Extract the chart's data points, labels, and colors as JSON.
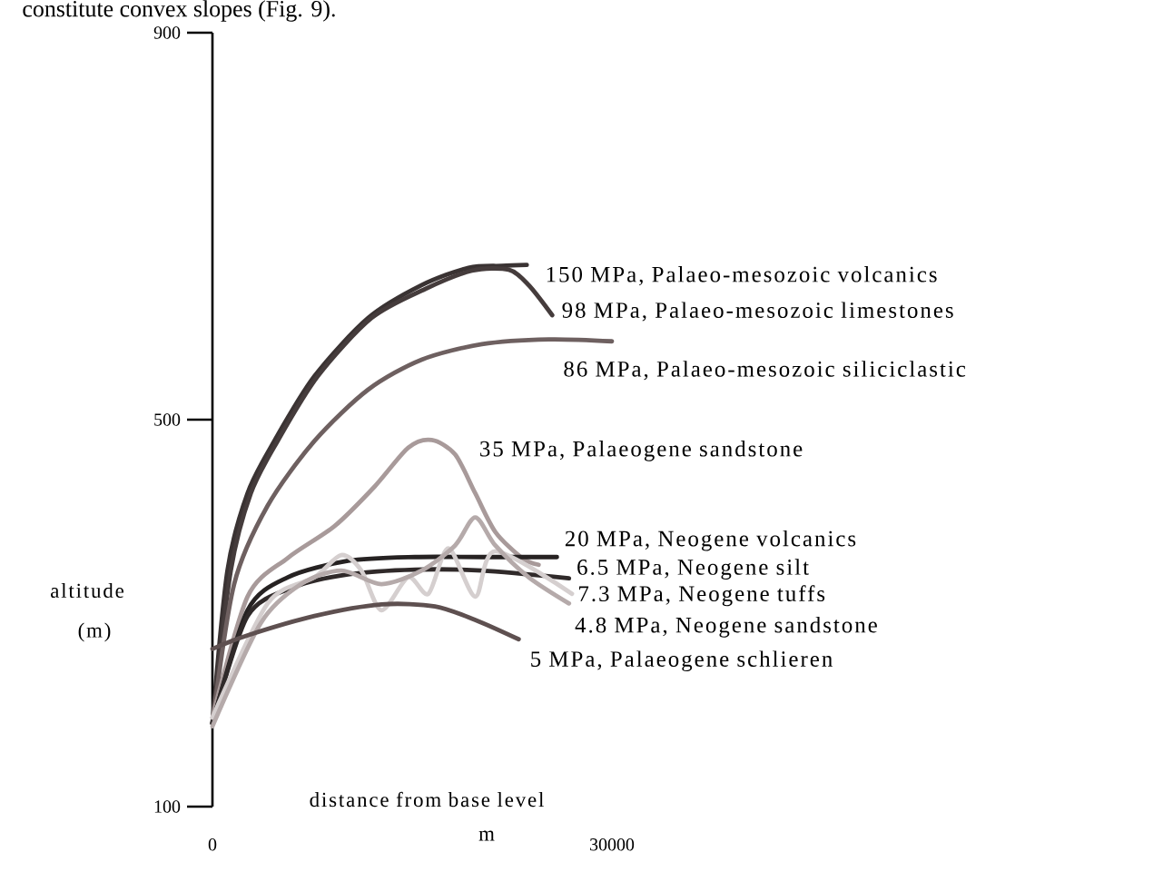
{
  "chart_data": {
    "type": "line",
    "xlabel": "distance from base level",
    "ylabel": "altitude",
    "xlim": [
      0,
      30000
    ],
    "ylim": [
      100,
      900
    ],
    "xticks": [
      0,
      30000
    ],
    "yticks": [
      100,
      500,
      900
    ],
    "grid": false,
    "annotations": [
      "constitute convex slopes (Fig. 9).",
      "m",
      "(m)"
    ],
    "series": [
      {
        "name": "150 MPa, Palaeo-mesozoic volcanics",
        "color": "#3a3333",
        "x": [
          0,
          1126,
          2635,
          4647,
          7664,
          11687,
          15710,
          19231,
          21745,
          23606
        ],
        "values": [
          186,
          344,
          424,
          478,
          545,
          605,
          639,
          657,
          659,
          660
        ]
      },
      {
        "name": "98 MPa, Palaeo-mesozoic limestones",
        "color": "#453c3c",
        "x": [
          0,
          1378,
          2886,
          4898,
          7915,
          11938,
          15962,
          19482,
          22248,
          23757,
          25517
        ],
        "values": [
          186,
          344,
          424,
          478,
          545,
          605,
          635,
          654,
          655,
          639,
          608
        ]
      },
      {
        "name": "86 MPa, Palaeo-mesozoic siliciclastic",
        "color": "#6e6060",
        "x": [
          0,
          1629,
          4143,
          7664,
          11687,
          15710,
          20236,
          25265,
          30000
        ],
        "values": [
          186,
          330,
          411,
          478,
          531,
          562,
          578,
          583,
          581
        ]
      },
      {
        "name": "35 MPa, Palaeogene sandstone",
        "color": "#a89a9a",
        "x": [
          0,
          2635,
          5652,
          9173,
          12190,
          14705,
          16465,
          18225,
          19734,
          21243,
          23255,
          24500
        ],
        "values": [
          192,
          317,
          357,
          390,
          431,
          471,
          479,
          464,
          424,
          384,
          357,
          350
        ]
      },
      {
        "name": "20 MPa, Neogene volcanics",
        "color": "#262222",
        "x": [
          0,
          2635,
          5652,
          10179,
          15208,
          20236,
          25869
        ],
        "values": [
          186,
          303,
          337,
          354,
          358,
          358,
          358
        ]
      },
      {
        "name": "6.5 MPa, Neogene silt",
        "color": "#302a2a",
        "x": [
          0,
          2635,
          6155,
          10179,
          15208,
          20236,
          26775
        ],
        "values": [
          186,
          297,
          327,
          340,
          345,
          344,
          336
        ]
      },
      {
        "name": "7.3 MPa, Neogene tuffs",
        "color": "#d5cfcf",
        "x": [
          0,
          4143,
          7664,
          9676,
          11184,
          12693,
          14705,
          16214,
          17722,
          19734,
          21243,
          27000
        ],
        "values": [
          192,
          310,
          337,
          360,
          344,
          303,
          337,
          320,
          367,
          317,
          364,
          320
        ]
      },
      {
        "name": "4.8 MPa, Neogene sandstone",
        "color": "#b5aaaa",
        "x": [
          0,
          3640,
          6658,
          9676,
          12693,
          15710,
          18225,
          19734,
          21243,
          23757,
          26775
        ],
        "values": [
          183,
          290,
          330,
          344,
          330,
          344,
          370,
          399,
          370,
          337,
          310
        ]
      },
      {
        "name": "5 MPa, Palaeogene schlieren",
        "color": "#5e5050",
        "x": [
          0,
          2635,
          7664,
          12693,
          16717,
          19734,
          22999
        ],
        "values": [
          263,
          277,
          297,
          309,
          307,
          293,
          273
        ]
      }
    ]
  }
}
